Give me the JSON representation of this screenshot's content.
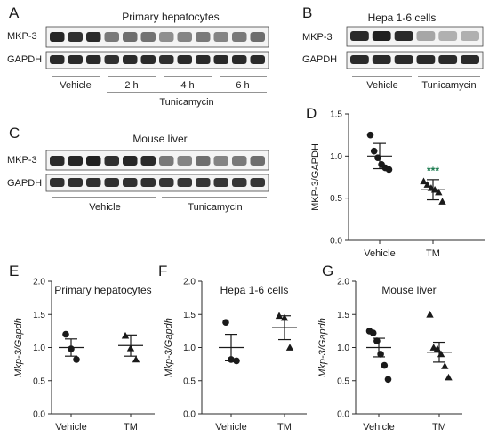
{
  "panels": {
    "A": {
      "letter": "A",
      "title": "Primary hepatocytes",
      "row1": "MKP-3",
      "row2": "GAPDH",
      "groups": [
        "Vehicle",
        "2 h",
        "4 h",
        "6 h"
      ],
      "treatment": "Tunicamycin"
    },
    "B": {
      "letter": "B",
      "title": "Hepa 1-6 cells",
      "row1": "MKP-3",
      "row2": "GAPDH",
      "groups": [
        "Vehicle",
        "Tunicamycin"
      ]
    },
    "C": {
      "letter": "C",
      "title": "Mouse liver",
      "row1": "MKP-3",
      "row2": "GAPDH",
      "groups": [
        "Vehicle",
        "Tunicamycin"
      ]
    },
    "D": {
      "letter": "D"
    },
    "E": {
      "letter": "E"
    },
    "F": {
      "letter": "F"
    },
    "G": {
      "letter": "G"
    }
  },
  "chart_data": [
    {
      "id": "D",
      "type": "scatter",
      "title": "",
      "xlabel": "",
      "ylabel": "MKP-3/GAPDH",
      "ylim": [
        0,
        1.5
      ],
      "yticks": [
        "0.0",
        "0.5",
        "1.0",
        "1.5"
      ],
      "categories": [
        "Vehicle",
        "TM"
      ],
      "marker": [
        "circle",
        "triangle"
      ],
      "points": [
        [
          1.25,
          1.06,
          0.98,
          0.9,
          0.86,
          0.84
        ],
        [
          0.7,
          0.66,
          0.62,
          0.6,
          0.57,
          0.46
        ]
      ],
      "mean": [
        1.0,
        0.6
      ],
      "sem_low": [
        0.85,
        0.48
      ],
      "sem_high": [
        1.15,
        0.72
      ],
      "annotation": "***"
    },
    {
      "id": "E",
      "type": "scatter",
      "title": "Primary hepatocytes",
      "xlabel": "",
      "ylabel": "Mkp-3/Gapdh",
      "ylim": [
        0,
        2.0
      ],
      "yticks": [
        "0.0",
        "0.5",
        "1.0",
        "1.5",
        "2.0"
      ],
      "categories": [
        "Vehicle",
        "TM"
      ],
      "marker": [
        "circle",
        "triangle"
      ],
      "points": [
        [
          1.2,
          0.98,
          0.82
        ],
        [
          1.18,
          0.99,
          0.82
        ]
      ],
      "mean": [
        1.0,
        1.03
      ],
      "sem_low": [
        0.87,
        0.87
      ],
      "sem_high": [
        1.13,
        1.19
      ]
    },
    {
      "id": "F",
      "type": "scatter",
      "title": "Hepa 1-6 cells",
      "xlabel": "",
      "ylabel": "Mkp-3/Gapdh",
      "ylim": [
        0,
        2.0
      ],
      "yticks": [
        "0.0",
        "0.5",
        "1.0",
        "1.5",
        "2.0"
      ],
      "categories": [
        "Vehicle",
        "TM"
      ],
      "marker": [
        "circle",
        "triangle"
      ],
      "points": [
        [
          1.38,
          0.82,
          0.8
        ],
        [
          1.48,
          1.45,
          1.0
        ]
      ],
      "mean": [
        1.0,
        1.3
      ],
      "sem_low": [
        0.8,
        1.12
      ],
      "sem_high": [
        1.2,
        1.48
      ]
    },
    {
      "id": "G",
      "type": "scatter",
      "title": "Mouse liver",
      "xlabel": "",
      "ylabel": "Mkp-3/Gapdh",
      "ylim": [
        0,
        2.0
      ],
      "yticks": [
        "0.0",
        "0.5",
        "1.0",
        "1.5",
        "2.0"
      ],
      "categories": [
        "Vehicle",
        "TM"
      ],
      "marker": [
        "circle",
        "triangle"
      ],
      "points": [
        [
          1.25,
          1.22,
          1.1,
          0.9,
          0.73,
          0.52
        ],
        [
          1.5,
          1.0,
          0.98,
          0.9,
          0.72,
          0.55
        ]
      ],
      "mean": [
        1.0,
        0.93
      ],
      "sem_low": [
        0.86,
        0.78
      ],
      "sem_high": [
        1.14,
        1.08
      ]
    }
  ]
}
